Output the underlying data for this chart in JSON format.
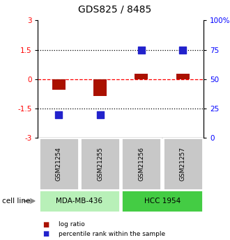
{
  "title": "GDS825 / 8485",
  "samples": [
    "GSM21254",
    "GSM21255",
    "GSM21256",
    "GSM21257"
  ],
  "log_ratios": [
    -0.55,
    -0.85,
    0.28,
    0.28
  ],
  "percentile_ranks": [
    20,
    20,
    75,
    75
  ],
  "cell_lines": [
    {
      "label": "MDA-MB-436",
      "samples": [
        0,
        1
      ],
      "color": "#b8f0b8"
    },
    {
      "label": "HCC 1954",
      "samples": [
        2,
        3
      ],
      "color": "#44cc44"
    }
  ],
  "left_ylim": [
    -3,
    3
  ],
  "right_ylim": [
    0,
    100
  ],
  "left_yticks": [
    -3,
    -1.5,
    0,
    1.5,
    3
  ],
  "left_yticklabels": [
    "-3",
    "-1.5",
    "0",
    "1.5",
    "3"
  ],
  "right_yticks": [
    0,
    25,
    50,
    75,
    100
  ],
  "right_yticklabels": [
    "0",
    "25",
    "50",
    "75",
    "100%"
  ],
  "hlines_dotted": [
    1.5,
    -1.5
  ],
  "hline_dashed_red": 0.0,
  "bar_color": "#aa1100",
  "dot_color": "#2222cc",
  "bar_width": 0.32,
  "dot_size": 45,
  "gsm_box_color": "#c8c8c8",
  "cell_line_label": "cell line",
  "legend_items": [
    {
      "label": "log ratio",
      "color": "#aa1100"
    },
    {
      "label": "percentile rank within the sample",
      "color": "#2222cc"
    }
  ],
  "title_fontsize": 10,
  "tick_fontsize": 7.5,
  "label_fontsize": 7.5
}
